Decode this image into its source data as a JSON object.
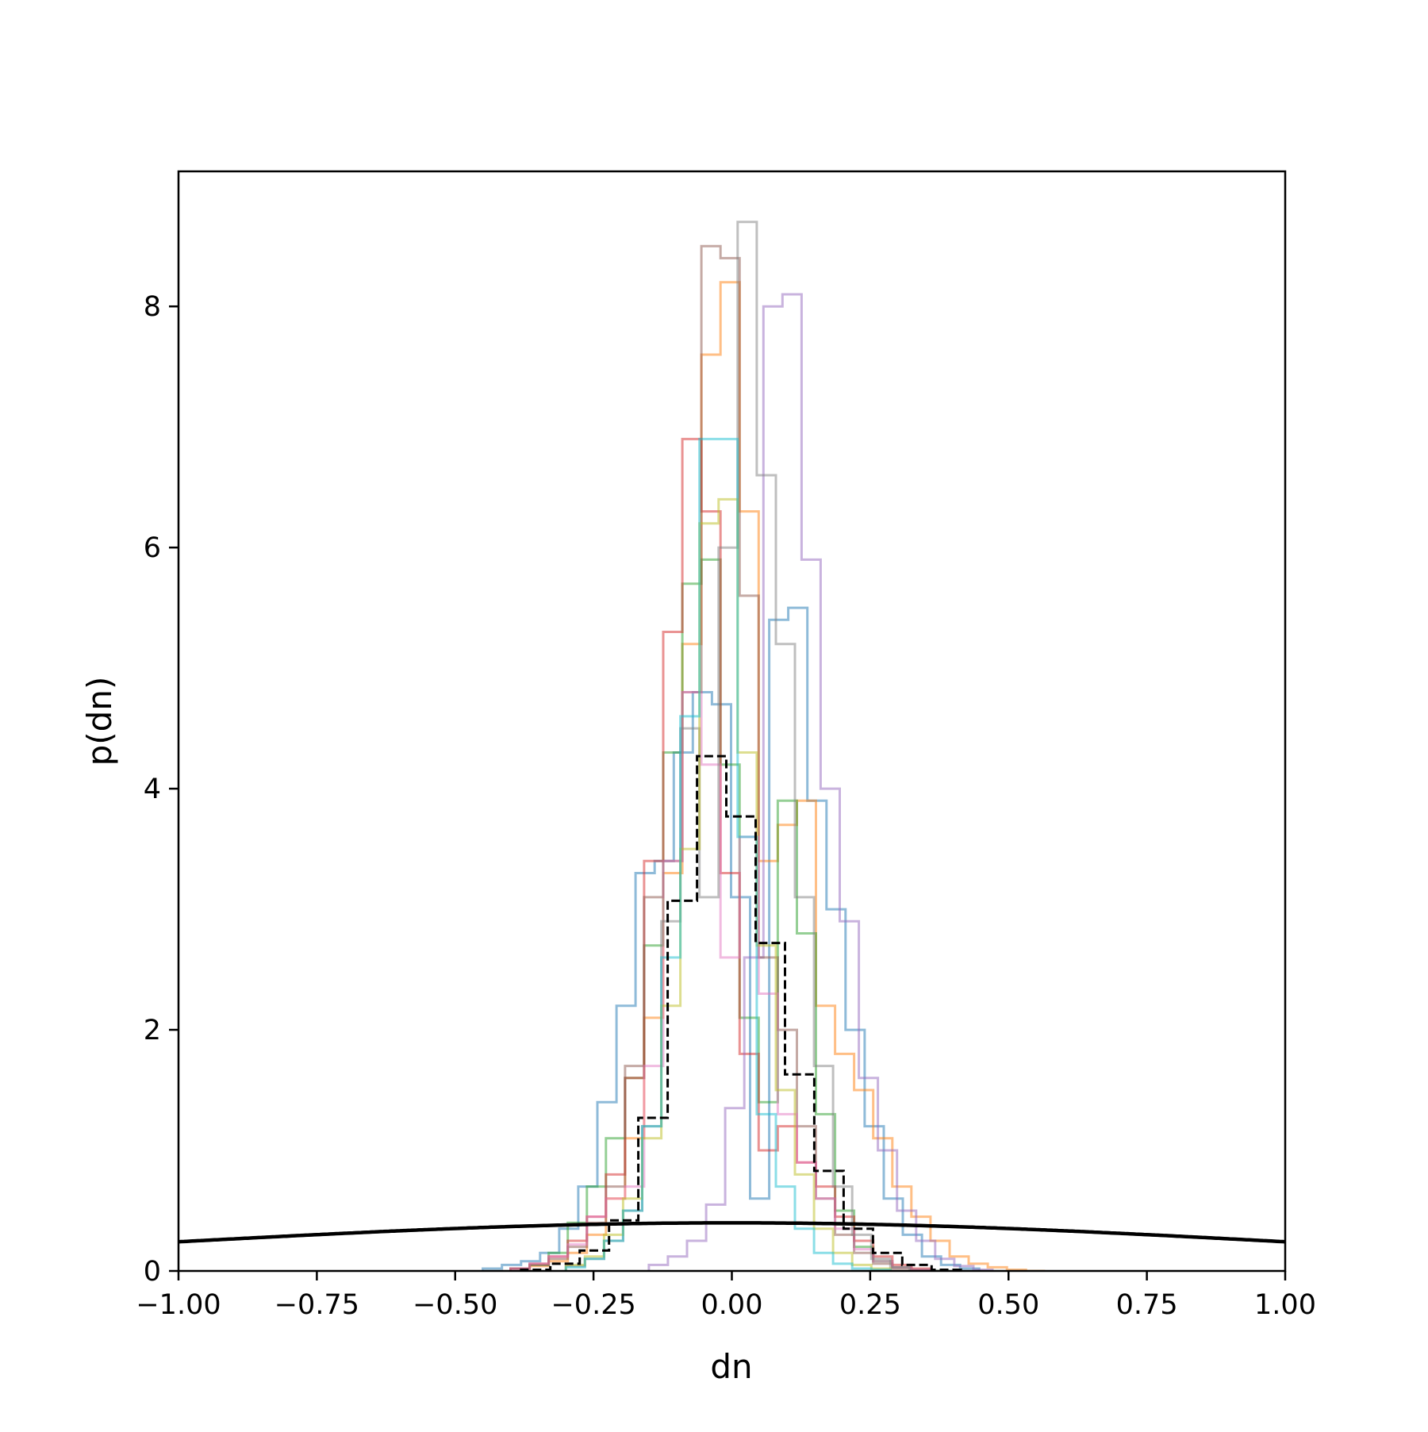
{
  "chart_data": {
    "type": "histogram",
    "title": "",
    "xlabel": "dn",
    "ylabel": "p(dn)",
    "xlim": [
      -1.0,
      1.0
    ],
    "ylim": [
      0,
      9.12
    ],
    "x_ticks": [
      -1.0,
      -0.75,
      -0.5,
      -0.25,
      0.0,
      0.25,
      0.5,
      0.75,
      1.0
    ],
    "x_tick_labels": [
      "−1.00",
      "−0.75",
      "−0.50",
      "−0.25",
      "0.00",
      "0.25",
      "0.50",
      "0.75",
      "1.00"
    ],
    "y_ticks": [
      0,
      2,
      4,
      6,
      8
    ],
    "y_tick_labels": [
      "0",
      "2",
      "4",
      "6",
      "8"
    ],
    "grid": false,
    "legend": "none",
    "series": [
      {
        "color": "#1f77b4",
        "alpha": 0.5,
        "bin_width": 0.0345,
        "edges": [
          -0.45,
          -0.4155,
          -0.381,
          -0.3465,
          -0.312,
          -0.2775,
          -0.243,
          -0.2085,
          -0.174,
          -0.1395,
          -0.105,
          -0.0705,
          -0.036,
          -0.0015,
          0.033,
          0.0675,
          0.102,
          0.1365,
          0.171,
          0.2055,
          0.24,
          0.2745,
          0.309,
          0.3435,
          0.378,
          0.4125,
          0.447
        ],
        "values": [
          0.02,
          0.05,
          0.08,
          0.15,
          0.35,
          0.7,
          1.4,
          2.2,
          3.3,
          3.4,
          4.3,
          4.8,
          4.7,
          3.1,
          0.6,
          5.4,
          5.5,
          3.9,
          3.0,
          2.0,
          1.2,
          0.6,
          0.3,
          0.12,
          0.05,
          0.02
        ]
      },
      {
        "color": "#ff7f0e",
        "alpha": 0.5,
        "bin_width": 0.0345,
        "edges": [
          -0.4,
          -0.3655,
          -0.331,
          -0.2965,
          -0.262,
          -0.2275,
          -0.193,
          -0.1585,
          -0.124,
          -0.0895,
          -0.055,
          -0.0205,
          0.014,
          0.0485,
          0.083,
          0.1175,
          0.152,
          0.1865,
          0.221,
          0.2555,
          0.29,
          0.3245,
          0.359,
          0.3935,
          0.428,
          0.4625,
          0.497,
          0.5315,
          0.566
        ],
        "values": [
          0.02,
          0.04,
          0.08,
          0.15,
          0.3,
          0.6,
          1.1,
          2.1,
          3.3,
          5.2,
          7.6,
          8.2,
          6.3,
          3.4,
          3.7,
          3.9,
          2.2,
          1.8,
          1.5,
          1.1,
          0.7,
          0.45,
          0.25,
          0.12,
          0.06,
          0.03,
          0.01,
          0.0
        ]
      },
      {
        "color": "#2ca02c",
        "alpha": 0.5,
        "bin_width": 0.0345,
        "edges": [
          -0.4,
          -0.3655,
          -0.331,
          -0.2965,
          -0.262,
          -0.2275,
          -0.193,
          -0.1585,
          -0.124,
          -0.0895,
          -0.055,
          -0.0205,
          0.014,
          0.0485,
          0.083,
          0.1175,
          0.152,
          0.1865,
          0.221,
          0.2555,
          0.29,
          0.3245,
          0.359,
          0.3935
        ],
        "values": [
          0.02,
          0.05,
          0.15,
          0.4,
          0.7,
          1.1,
          1.6,
          2.7,
          4.3,
          5.7,
          5.9,
          4.2,
          2.1,
          1.4,
          3.9,
          2.8,
          1.3,
          0.5,
          0.2,
          0.08,
          0.03,
          0.01,
          0.0
        ]
      },
      {
        "color": "#d62728",
        "alpha": 0.5,
        "bin_width": 0.0345,
        "edges": [
          -0.4,
          -0.3655,
          -0.331,
          -0.2965,
          -0.262,
          -0.2275,
          -0.193,
          -0.1585,
          -0.124,
          -0.0895,
          -0.055,
          -0.0205,
          0.014,
          0.0485,
          0.083,
          0.1175,
          0.152,
          0.1865,
          0.221,
          0.2555,
          0.29,
          0.3245,
          0.359
        ],
        "values": [
          0.02,
          0.06,
          0.12,
          0.25,
          0.45,
          0.8,
          1.6,
          3.4,
          5.3,
          6.9,
          6.3,
          3.3,
          1.8,
          1.0,
          1.2,
          0.9,
          0.7,
          0.45,
          0.25,
          0.12,
          0.05,
          0.02
        ]
      },
      {
        "color": "#9467bd",
        "alpha": 0.5,
        "bin_width": 0.0345,
        "edges": [
          -0.15,
          -0.1155,
          -0.081,
          -0.0465,
          -0.012,
          0.0225,
          0.057,
          0.0915,
          0.126,
          0.1605,
          0.195,
          0.2295,
          0.264,
          0.2985,
          0.333,
          0.3675,
          0.402,
          0.4365,
          0.471
        ],
        "values": [
          0.05,
          0.12,
          0.25,
          0.55,
          1.35,
          2.6,
          8.0,
          8.1,
          5.9,
          4.0,
          2.9,
          1.6,
          1.0,
          0.5,
          0.25,
          0.1,
          0.04,
          0.01
        ]
      },
      {
        "color": "#8c564b",
        "alpha": 0.5,
        "bin_width": 0.0345,
        "edges": [
          -0.4,
          -0.3655,
          -0.331,
          -0.2965,
          -0.262,
          -0.2275,
          -0.193,
          -0.1585,
          -0.124,
          -0.0895,
          -0.055,
          -0.0205,
          0.014,
          0.0485,
          0.083,
          0.1175,
          0.152,
          0.1865,
          0.221,
          0.2555,
          0.29,
          0.3245,
          0.359
        ],
        "values": [
          0.02,
          0.05,
          0.1,
          0.2,
          0.4,
          0.7,
          1.7,
          3.1,
          3.4,
          4.8,
          8.5,
          8.4,
          5.6,
          2.6,
          2.0,
          1.2,
          0.6,
          0.3,
          0.15,
          0.06,
          0.02,
          0.01
        ]
      },
      {
        "color": "#e377c2",
        "alpha": 0.5,
        "bin_width": 0.0345,
        "edges": [
          -0.4,
          -0.3655,
          -0.331,
          -0.2965,
          -0.262,
          -0.2275,
          -0.193,
          -0.1585,
          -0.124,
          -0.0895,
          -0.055,
          -0.0205,
          0.014,
          0.0485,
          0.083,
          0.1175,
          0.152,
          0.1865,
          0.221,
          0.2555,
          0.29,
          0.3245,
          0.359
        ],
        "values": [
          0.02,
          0.06,
          0.12,
          0.22,
          0.45,
          0.6,
          0.7,
          1.7,
          3.4,
          4.8,
          4.2,
          2.6,
          3.6,
          2.3,
          1.3,
          0.9,
          0.6,
          0.35,
          0.18,
          0.08,
          0.03,
          0.01
        ]
      },
      {
        "color": "#7f7f7f",
        "alpha": 0.5,
        "bin_width": 0.0345,
        "edges": [
          -0.3,
          -0.2655,
          -0.231,
          -0.1965,
          -0.162,
          -0.1275,
          -0.093,
          -0.0585,
          -0.024,
          0.0105,
          0.045,
          0.0795,
          0.114,
          0.1485,
          0.183,
          0.2175,
          0.252,
          0.2865,
          0.321
        ],
        "values": [
          0.04,
          0.1,
          0.25,
          0.5,
          1.2,
          2.9,
          4.5,
          3.1,
          6.0,
          8.7,
          6.6,
          5.2,
          3.1,
          1.7,
          0.7,
          0.3,
          0.1,
          0.03
        ]
      },
      {
        "color": "#bcbd22",
        "alpha": 0.5,
        "bin_width": 0.0345,
        "edges": [
          -0.3,
          -0.2655,
          -0.231,
          -0.1965,
          -0.162,
          -0.1275,
          -0.093,
          -0.0585,
          -0.024,
          0.0105,
          0.045,
          0.0795,
          0.114,
          0.1485,
          0.183,
          0.2175,
          0.252,
          0.2865
        ],
        "values": [
          0.05,
          0.12,
          0.3,
          0.6,
          1.1,
          2.2,
          3.5,
          6.2,
          6.4,
          4.3,
          2.7,
          1.5,
          0.8,
          0.35,
          0.15,
          0.05,
          0.02
        ]
      },
      {
        "color": "#17becf",
        "alpha": 0.5,
        "bin_width": 0.0345,
        "edges": [
          -0.3,
          -0.2655,
          -0.231,
          -0.1965,
          -0.162,
          -0.1275,
          -0.093,
          -0.0585,
          -0.024,
          0.0105,
          0.045,
          0.0795,
          0.114,
          0.1485,
          0.183,
          0.2175,
          0.252,
          0.2865
        ],
        "values": [
          0.03,
          0.1,
          0.25,
          0.5,
          1.2,
          2.6,
          4.6,
          6.9,
          6.9,
          3.6,
          1.3,
          0.7,
          0.35,
          0.15,
          0.06,
          0.02,
          0.01
        ]
      }
    ],
    "combined": {
      "color": "#000000",
      "style": "dashed",
      "bin_width": 0.053,
      "edges": [
        -0.381,
        -0.328,
        -0.275,
        -0.222,
        -0.169,
        -0.116,
        -0.063,
        -0.01,
        0.043,
        0.096,
        0.149,
        0.202,
        0.255,
        0.308,
        0.361,
        0.414
      ],
      "values": [
        0.01,
        0.06,
        0.17,
        0.42,
        1.27,
        3.07,
        4.27,
        3.77,
        2.72,
        1.63,
        0.83,
        0.35,
        0.15,
        0.05,
        0.01
      ]
    },
    "prior_curve": {
      "color": "#000000",
      "type": "gaussian",
      "mean": 0.0,
      "sigma": 1.0
    }
  }
}
